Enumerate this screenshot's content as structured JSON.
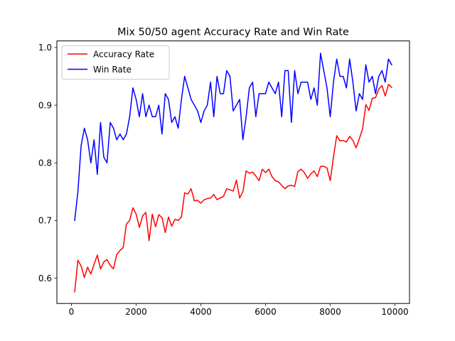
{
  "chart_data": {
    "type": "line",
    "title": "Mix 50/50 agent Accuracy Rate and Win Rate",
    "xlabel": "",
    "ylabel": "",
    "xlim": [
      -450,
      10450
    ],
    "ylim": [
      0.556,
      1.0115
    ],
    "x_ticks": [
      0,
      2000,
      4000,
      6000,
      8000,
      10000
    ],
    "x_tick_labels": [
      "0",
      "2000",
      "4000",
      "6000",
      "8000",
      "10000"
    ],
    "y_ticks": [
      0.6,
      0.7,
      0.8,
      0.9,
      1.0
    ],
    "y_tick_labels": [
      "0.6",
      "0.7",
      "0.8",
      "0.9",
      "1.0"
    ],
    "grid": false,
    "legend_position": "upper-left",
    "x": [
      100,
      200,
      300,
      400,
      500,
      600,
      700,
      800,
      900,
      1000,
      1100,
      1200,
      1300,
      1400,
      1500,
      1600,
      1700,
      1800,
      1900,
      2000,
      2100,
      2200,
      2300,
      2400,
      2500,
      2600,
      2700,
      2800,
      2900,
      3000,
      3100,
      3200,
      3300,
      3400,
      3500,
      3600,
      3700,
      3800,
      3900,
      4000,
      4100,
      4200,
      4300,
      4400,
      4500,
      4600,
      4700,
      4800,
      4900,
      5000,
      5100,
      5200,
      5300,
      5400,
      5500,
      5600,
      5700,
      5800,
      5900,
      6000,
      6100,
      6200,
      6300,
      6400,
      6500,
      6600,
      6700,
      6800,
      6900,
      7000,
      7100,
      7200,
      7300,
      7400,
      7500,
      7600,
      7700,
      7800,
      7900,
      8000,
      8100,
      8200,
      8300,
      8400,
      8500,
      8600,
      8700,
      8800,
      8900,
      9000,
      9100,
      9200,
      9300,
      9400,
      9500,
      9600,
      9700,
      9800,
      9900
    ],
    "series": [
      {
        "name": "Accuracy Rate",
        "color": "#ff0000",
        "values": [
          0.576,
          0.631,
          0.621,
          0.601,
          0.619,
          0.607,
          0.624,
          0.64,
          0.616,
          0.628,
          0.632,
          0.622,
          0.616,
          0.641,
          0.648,
          0.653,
          0.694,
          0.7,
          0.722,
          0.711,
          0.688,
          0.708,
          0.714,
          0.665,
          0.711,
          0.689,
          0.71,
          0.705,
          0.679,
          0.706,
          0.69,
          0.702,
          0.7,
          0.706,
          0.748,
          0.746,
          0.755,
          0.734,
          0.735,
          0.73,
          0.736,
          0.738,
          0.739,
          0.745,
          0.736,
          0.739,
          0.742,
          0.755,
          0.753,
          0.751,
          0.77,
          0.739,
          0.75,
          0.786,
          0.782,
          0.784,
          0.777,
          0.769,
          0.789,
          0.783,
          0.789,
          0.776,
          0.769,
          0.767,
          0.761,
          0.755,
          0.76,
          0.761,
          0.759,
          0.785,
          0.789,
          0.783,
          0.773,
          0.781,
          0.786,
          0.776,
          0.794,
          0.794,
          0.791,
          0.769,
          0.81,
          0.847,
          0.838,
          0.839,
          0.836,
          0.846,
          0.839,
          0.826,
          0.842,
          0.859,
          0.901,
          0.891,
          0.912,
          0.913,
          0.928,
          0.934,
          0.916,
          0.936,
          0.931
        ]
      },
      {
        "name": "Win Rate",
        "color": "#0000ff",
        "values": [
          0.7,
          0.75,
          0.83,
          0.86,
          0.84,
          0.8,
          0.84,
          0.78,
          0.87,
          0.81,
          0.8,
          0.87,
          0.86,
          0.84,
          0.85,
          0.84,
          0.85,
          0.88,
          0.93,
          0.91,
          0.88,
          0.92,
          0.88,
          0.9,
          0.88,
          0.88,
          0.9,
          0.85,
          0.92,
          0.91,
          0.87,
          0.88,
          0.86,
          0.91,
          0.95,
          0.93,
          0.91,
          0.9,
          0.89,
          0.87,
          0.89,
          0.9,
          0.94,
          0.88,
          0.95,
          0.92,
          0.92,
          0.96,
          0.95,
          0.89,
          0.9,
          0.91,
          0.84,
          0.88,
          0.93,
          0.94,
          0.88,
          0.92,
          0.92,
          0.92,
          0.94,
          0.93,
          0.92,
          0.94,
          0.88,
          0.96,
          0.96,
          0.87,
          0.96,
          0.92,
          0.94,
          0.94,
          0.94,
          0.91,
          0.93,
          0.9,
          0.99,
          0.96,
          0.93,
          0.88,
          0.94,
          0.98,
          0.95,
          0.95,
          0.93,
          0.98,
          0.94,
          0.89,
          0.92,
          0.91,
          0.97,
          0.94,
          0.95,
          0.92,
          0.95,
          0.96,
          0.94,
          0.98,
          0.97
        ]
      }
    ]
  }
}
